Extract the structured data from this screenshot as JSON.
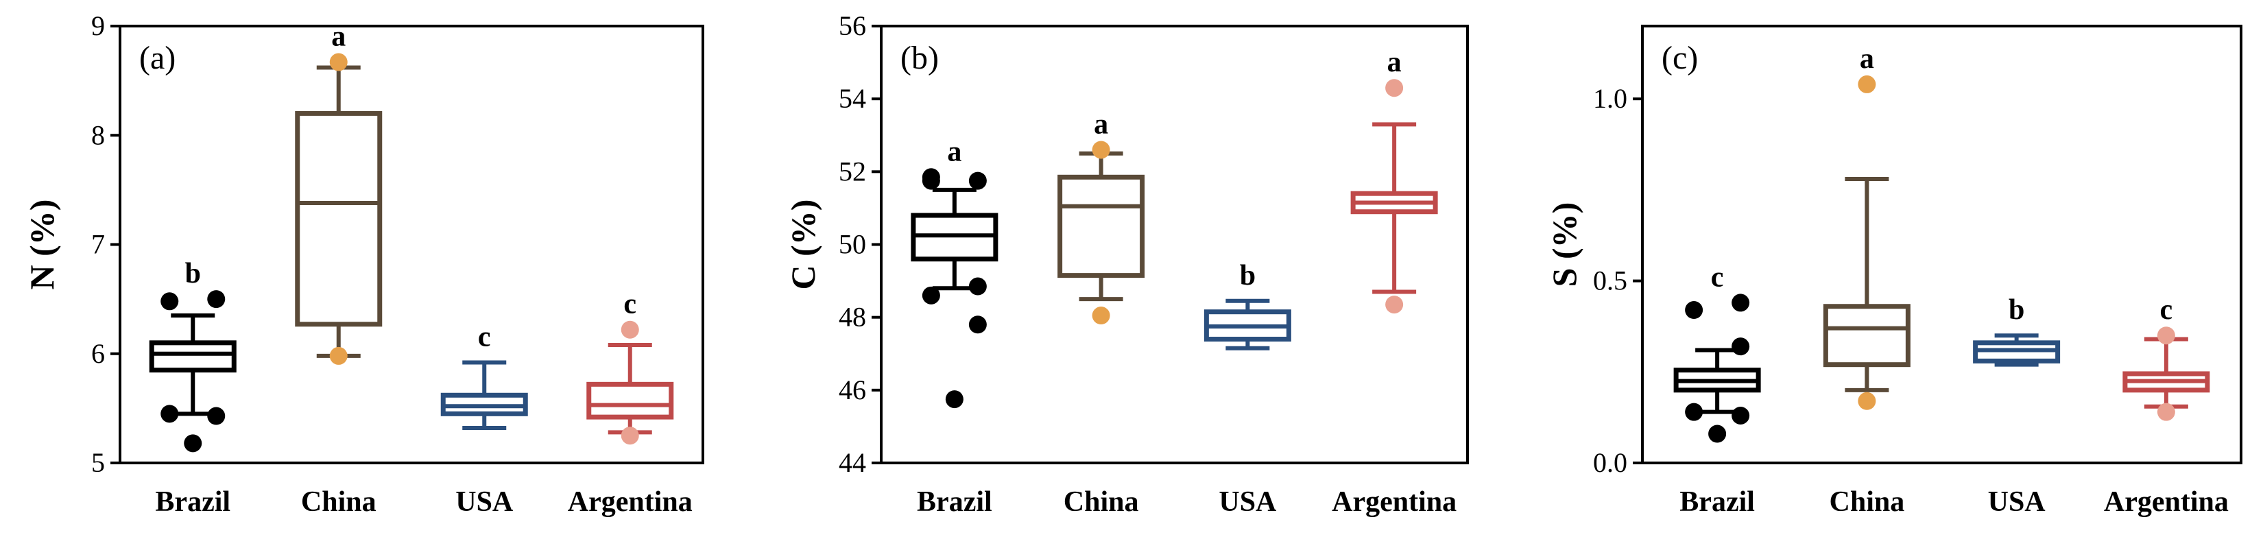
{
  "colors": {
    "Brazil": "#000000",
    "China": "#5a4a38",
    "USA": "#2a4f7e",
    "Argentina": "#bf4a4a",
    "China_outlier": "#e6a04a",
    "Argentina_outlier": "#e9a090"
  },
  "chart_data": [
    {
      "type": "box",
      "panel_label": "(a)",
      "ylabel": "N (%)",
      "ylim": [
        5,
        9
      ],
      "yticks": [
        5,
        6,
        7,
        8,
        9
      ],
      "ytick_labels": [
        "5",
        "6",
        "7",
        "8",
        "9"
      ],
      "categories": [
        "Brazil",
        "China",
        "USA",
        "Argentina"
      ],
      "boxes": [
        {
          "name": "Brazil",
          "whisker_low": 5.45,
          "q1": 5.85,
          "median": 6.0,
          "q3": 6.1,
          "whisker_high": 6.35,
          "outliers": [
            5.18,
            5.43,
            5.45,
            6.5,
            6.48
          ],
          "letter": "b"
        },
        {
          "name": "China",
          "whisker_low": 5.98,
          "q1": 6.27,
          "median": 7.38,
          "q3": 8.2,
          "whisker_high": 8.62,
          "outliers": [
            5.98,
            8.67
          ],
          "letter": "a"
        },
        {
          "name": "USA",
          "whisker_low": 5.32,
          "q1": 5.45,
          "median": 5.52,
          "q3": 5.62,
          "whisker_high": 5.92,
          "outliers": [],
          "letter": "c"
        },
        {
          "name": "Argentina",
          "whisker_low": 5.28,
          "q1": 5.42,
          "median": 5.53,
          "q3": 5.72,
          "whisker_high": 6.08,
          "outliers": [
            5.25,
            6.22
          ],
          "letter": "c"
        }
      ]
    },
    {
      "type": "box",
      "panel_label": "(b)",
      "ylabel": "C (%)",
      "ylim": [
        44,
        56
      ],
      "yticks": [
        44,
        46,
        48,
        50,
        52,
        54,
        56
      ],
      "ytick_labels": [
        "44",
        "46",
        "48",
        "50",
        "52",
        "54",
        "56"
      ],
      "categories": [
        "Brazil",
        "China",
        "USA",
        "Argentina"
      ],
      "boxes": [
        {
          "name": "Brazil",
          "whisker_low": 48.8,
          "q1": 49.6,
          "median": 50.25,
          "q3": 50.8,
          "whisker_high": 51.5,
          "outliers": [
            45.75,
            47.8,
            48.6,
            48.85,
            51.75,
            51.75,
            51.85
          ],
          "letter": "a"
        },
        {
          "name": "China",
          "whisker_low": 48.5,
          "q1": 49.15,
          "median": 51.05,
          "q3": 51.85,
          "whisker_high": 52.5,
          "outliers": [
            48.05,
            52.6
          ],
          "letter": "a"
        },
        {
          "name": "USA",
          "whisker_low": 47.15,
          "q1": 47.4,
          "median": 47.75,
          "q3": 48.15,
          "whisker_high": 48.45,
          "outliers": [],
          "letter": "b"
        },
        {
          "name": "Argentina",
          "whisker_low": 48.7,
          "q1": 50.9,
          "median": 51.15,
          "q3": 51.4,
          "whisker_high": 53.3,
          "outliers": [
            48.35,
            54.3
          ],
          "letter": "a"
        }
      ]
    },
    {
      "type": "box",
      "panel_label": "(c)",
      "ylabel": "S (%)",
      "ylim": [
        0,
        1.2
      ],
      "yticks": [
        0,
        0.5,
        1.0
      ],
      "ytick_labels": [
        "0.0",
        "0.5",
        "1.0"
      ],
      "categories": [
        "Brazil",
        "China",
        "USA",
        "Argentina"
      ],
      "boxes": [
        {
          "name": "Brazil",
          "whisker_low": 0.14,
          "q1": 0.2,
          "median": 0.225,
          "q3": 0.255,
          "whisker_high": 0.31,
          "outliers": [
            0.08,
            0.13,
            0.14,
            0.32,
            0.42,
            0.44
          ],
          "letter": "c"
        },
        {
          "name": "China",
          "whisker_low": 0.2,
          "q1": 0.27,
          "median": 0.37,
          "q3": 0.43,
          "whisker_high": 0.78,
          "outliers": [
            0.17,
            1.04
          ],
          "letter": "a"
        },
        {
          "name": "USA",
          "whisker_low": 0.27,
          "q1": 0.28,
          "median": 0.31,
          "q3": 0.33,
          "whisker_high": 0.35,
          "outliers": [],
          "letter": "b"
        },
        {
          "name": "Argentina",
          "whisker_low": 0.155,
          "q1": 0.2,
          "median": 0.225,
          "q3": 0.245,
          "whisker_high": 0.34,
          "outliers": [
            0.14,
            0.35
          ],
          "letter": "c"
        }
      ]
    }
  ]
}
